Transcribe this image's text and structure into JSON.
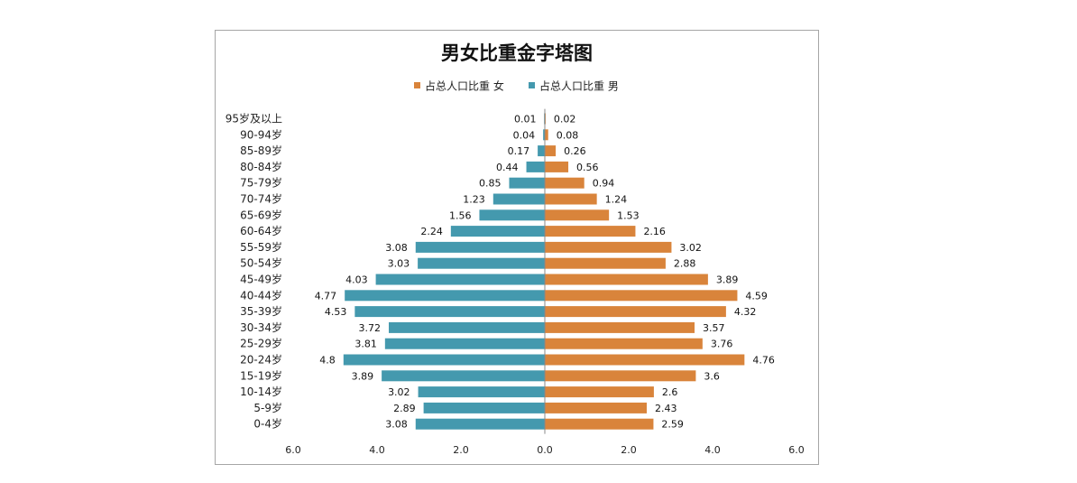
{
  "chart_data": {
    "type": "bar",
    "title": "男女比重金字塔图",
    "categories": [
      "95岁及以上",
      "90-94岁",
      "85-89岁",
      "80-84岁",
      "75-79岁",
      "70-74岁",
      "65-69岁",
      "60-64岁",
      "55-59岁",
      "50-54岁",
      "45-49岁",
      "40-44岁",
      "35-39岁",
      "30-34岁",
      "25-29岁",
      "20-24岁",
      "15-19岁",
      "10-14岁",
      "5-9岁",
      "0-4岁"
    ],
    "series": [
      {
        "name": "占总人口比重 女",
        "color": "#D9843B",
        "values": [
          0.02,
          0.08,
          0.26,
          0.56,
          0.94,
          1.24,
          1.53,
          2.16,
          3.02,
          2.88,
          3.89,
          4.59,
          4.32,
          3.57,
          3.76,
          4.76,
          3.6,
          2.6,
          2.43,
          2.59
        ],
        "labels": [
          "0.02",
          "0.08",
          "0.26",
          "0.56",
          "0.94",
          "1.24",
          "1.53",
          "2.16",
          "3.02",
          "2.88",
          "3.89",
          "4.59",
          "4.32",
          "3.57",
          "3.76",
          "4.76",
          "3.6",
          "2.6",
          "2.43",
          "2.59"
        ]
      },
      {
        "name": "占总人口比重 男",
        "color": "#4499AE",
        "values": [
          0.01,
          0.04,
          0.17,
          0.44,
          0.85,
          1.23,
          1.56,
          2.24,
          3.08,
          3.03,
          4.03,
          4.77,
          4.53,
          3.72,
          3.81,
          4.8,
          3.89,
          3.02,
          2.89,
          3.08
        ],
        "labels": [
          "0.01",
          "0.04",
          "0.17",
          "0.44",
          "0.85",
          "1.23",
          "1.56",
          "2.24",
          "3.08",
          "3.03",
          "4.03",
          "4.77",
          "4.53",
          "3.72",
          "3.81",
          "4.8",
          "3.89",
          "3.02",
          "2.89",
          "3.08"
        ]
      }
    ],
    "xlim": [
      -6,
      6
    ],
    "x_ticks": [
      "6.0",
      "4.0",
      "2.0",
      "0.0",
      "2.0",
      "4.0",
      "6.0"
    ],
    "legend_position": "top-center",
    "grid": false
  }
}
